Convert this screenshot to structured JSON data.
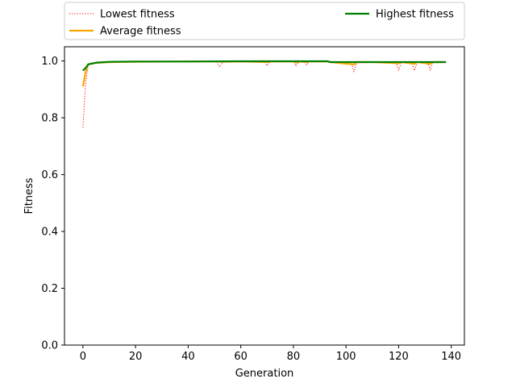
{
  "chart_data": {
    "type": "line",
    "xlabel": "Generation",
    "ylabel": "Fitness",
    "xlim": [
      -7,
      145
    ],
    "ylim": [
      0,
      1.05
    ],
    "xticks": [
      0,
      20,
      40,
      60,
      80,
      100,
      120,
      140
    ],
    "yticks": [
      0.0,
      0.2,
      0.4,
      0.6,
      0.8,
      1.0
    ],
    "xtick_labels": [
      "0",
      "20",
      "40",
      "60",
      "80",
      "100",
      "120",
      "140"
    ],
    "ytick_labels": [
      "0.0",
      "0.2",
      "0.4",
      "0.6",
      "0.8",
      "1.0"
    ],
    "grid": false,
    "legend_placement": "above plot, two columns",
    "series": [
      {
        "name": "Lowest fitness",
        "color": "#ff0000",
        "style": "dotted",
        "points": [
          [
            0,
            0.765
          ],
          [
            1,
            0.92
          ],
          [
            2,
            0.985
          ],
          [
            3,
            0.988
          ],
          [
            5,
            0.992
          ],
          [
            8,
            0.994
          ],
          [
            11,
            0.996
          ],
          [
            15,
            0.996
          ],
          [
            20,
            0.997
          ],
          [
            30,
            0.997
          ],
          [
            40,
            0.998
          ],
          [
            50,
            0.998
          ],
          [
            51,
            0.994
          ],
          [
            52,
            0.979
          ],
          [
            53,
            0.995
          ],
          [
            54,
            0.998
          ],
          [
            60,
            0.998
          ],
          [
            69,
            0.998
          ],
          [
            70,
            0.983
          ],
          [
            71,
            0.996
          ],
          [
            72,
            0.998
          ],
          [
            80,
            0.998
          ],
          [
            81,
            0.982
          ],
          [
            82,
            0.996
          ],
          [
            84,
            0.998
          ],
          [
            85,
            0.985
          ],
          [
            86,
            0.998
          ],
          [
            93,
            0.998
          ],
          [
            94,
            0.995
          ],
          [
            100,
            0.995
          ],
          [
            102,
            0.995
          ],
          [
            103,
            0.962
          ],
          [
            104,
            0.993
          ],
          [
            110,
            0.995
          ],
          [
            119,
            0.995
          ],
          [
            120,
            0.968
          ],
          [
            121,
            0.994
          ],
          [
            125,
            0.995
          ],
          [
            126,
            0.966
          ],
          [
            127,
            0.994
          ],
          [
            131,
            0.995
          ],
          [
            132,
            0.968
          ],
          [
            133,
            0.993
          ],
          [
            138,
            0.995
          ]
        ]
      },
      {
        "name": "Average fitness",
        "color": "#ffa500",
        "style": "solid",
        "points": [
          [
            0,
            0.91
          ],
          [
            1,
            0.96
          ],
          [
            2,
            0.988
          ],
          [
            3,
            0.99
          ],
          [
            5,
            0.993
          ],
          [
            8,
            0.995
          ],
          [
            11,
            0.996
          ],
          [
            20,
            0.997
          ],
          [
            40,
            0.998
          ],
          [
            52,
            0.998
          ],
          [
            53,
            0.997
          ],
          [
            60,
            0.998
          ],
          [
            70,
            0.996
          ],
          [
            71,
            0.998
          ],
          [
            80,
            0.998
          ],
          [
            81,
            0.994
          ],
          [
            82,
            0.998
          ],
          [
            85,
            0.996
          ],
          [
            86,
            0.998
          ],
          [
            93,
            0.998
          ],
          [
            94,
            0.996
          ],
          [
            103,
            0.988
          ],
          [
            104,
            0.996
          ],
          [
            110,
            0.996
          ],
          [
            120,
            0.992
          ],
          [
            121,
            0.996
          ],
          [
            126,
            0.99
          ],
          [
            127,
            0.996
          ],
          [
            132,
            0.99
          ],
          [
            133,
            0.996
          ],
          [
            138,
            0.996
          ]
        ]
      },
      {
        "name": "Highest fitness",
        "color": "#008000",
        "style": "solid",
        "points": [
          [
            0,
            0.966
          ],
          [
            1,
            0.975
          ],
          [
            2,
            0.988
          ],
          [
            5,
            0.994
          ],
          [
            10,
            0.997
          ],
          [
            20,
            0.998
          ],
          [
            40,
            0.998
          ],
          [
            60,
            0.999
          ],
          [
            80,
            0.999
          ],
          [
            93,
            0.999
          ],
          [
            94,
            0.996
          ],
          [
            110,
            0.996
          ],
          [
            138,
            0.996
          ]
        ]
      }
    ]
  }
}
